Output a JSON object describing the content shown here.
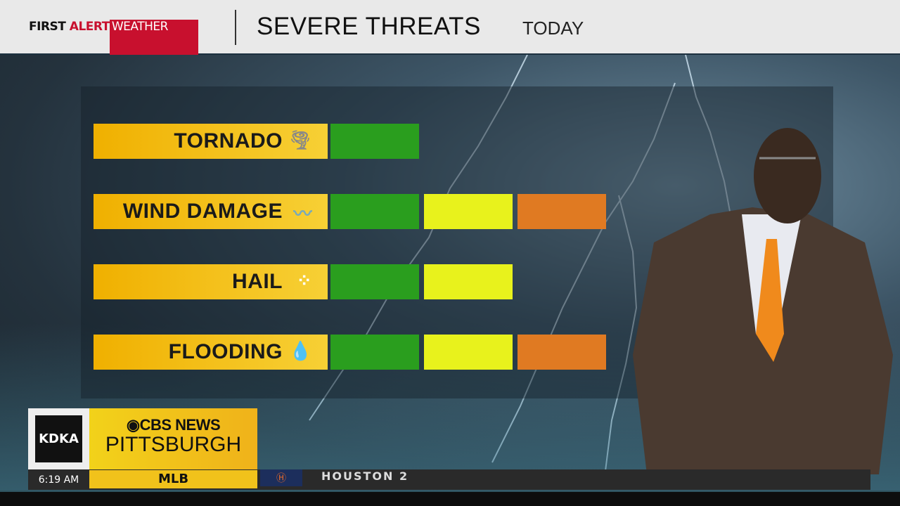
{
  "header": {
    "logo": {
      "first": "FIRST",
      "alert": "ALERT",
      "weather": "WEATHER"
    },
    "title": "SEVERE THREATS",
    "subtitle": "TODAY"
  },
  "colors": {
    "low": "#2a9e1e",
    "moderate": "#e8f21c",
    "high": "#e07a22",
    "label": "#f3b400",
    "brand_red": "#c8102e"
  },
  "threats": [
    {
      "label": "TORNADO",
      "icon": "tornado-icon",
      "level": 1
    },
    {
      "label": "WIND DAMAGE",
      "icon": "wind-icon",
      "level": 3
    },
    {
      "label": "HAIL",
      "icon": "hail-icon",
      "level": 2
    },
    {
      "label": "FLOODING",
      "icon": "raindrop-icon",
      "level": 3
    }
  ],
  "lower_third": {
    "station": "KDKA",
    "network": "CBS NEWS",
    "city": "PITTSBURGH",
    "time": "6:19 AM",
    "ticker_category": "MLB",
    "ticker_text": "HOUSTON  2"
  }
}
